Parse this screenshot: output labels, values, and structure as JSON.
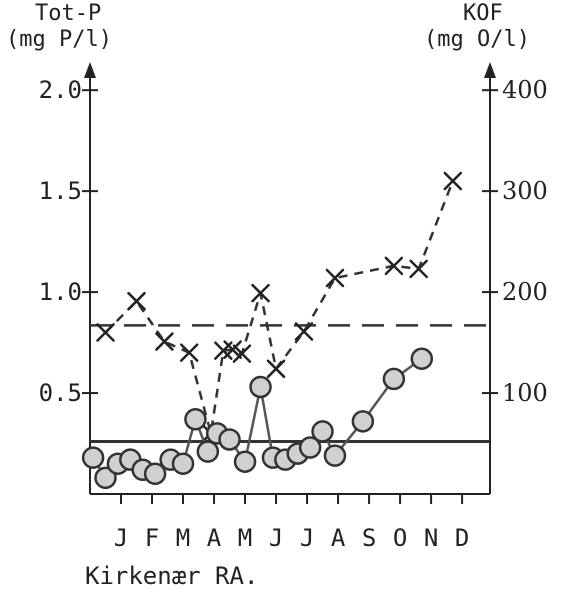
{
  "chart_data": {
    "type": "line",
    "left_axis": {
      "label_line1": "Tot-P",
      "label_line2": "(mg P/l)",
      "range": [
        0,
        2.1
      ],
      "ticks": [
        0.5,
        1.0,
        1.5,
        2.0
      ],
      "tick_labels": [
        "0.5",
        "1.0",
        "1.5",
        "2.0"
      ]
    },
    "right_axis": {
      "label_line1": "KOF",
      "label_line2": "(mg O/l)",
      "range": [
        0,
        420
      ],
      "ticks": [
        100,
        200,
        300,
        400
      ],
      "tick_labels": [
        "100",
        "200",
        "300",
        "400"
      ]
    },
    "months": [
      "J",
      "F",
      "M",
      "A",
      "M",
      "J",
      "J",
      "A",
      "S",
      "O",
      "N",
      "D"
    ],
    "x_range": [
      0,
      12.9
    ],
    "reference_lines": {
      "totp_level": 0.26,
      "kof_level": 167
    },
    "series": [
      {
        "axis": "right",
        "marker": "x",
        "style": "dashed",
        "x": [
          0.5,
          1.5,
          2.4,
          3.2,
          3.9,
          4.3,
          4.6,
          4.9,
          5.5,
          6.0,
          6.9,
          7.9,
          9.8,
          10.6,
          11.7
        ],
        "values": [
          160,
          191,
          151,
          140,
          60,
          142,
          143,
          139,
          199,
          124,
          161,
          214,
          226,
          223,
          310
        ]
      },
      {
        "axis": "left",
        "marker": "circle",
        "style": "solid",
        "x": [
          0.1,
          0.5,
          0.9,
          1.3,
          1.7,
          2.1,
          2.6,
          3.0,
          3.4,
          3.8,
          4.1,
          4.5,
          5.0,
          5.5,
          5.9,
          6.3,
          6.7,
          7.1,
          7.5,
          7.9,
          8.8,
          9.8,
          10.7
        ],
        "values": [
          0.18,
          0.08,
          0.15,
          0.17,
          0.12,
          0.1,
          0.17,
          0.15,
          0.37,
          0.21,
          0.3,
          0.27,
          0.16,
          0.53,
          0.18,
          0.17,
          0.2,
          0.23,
          0.31,
          0.19,
          0.36,
          0.57,
          0.67
        ]
      }
    ],
    "caption": "Kirkenær RA."
  }
}
